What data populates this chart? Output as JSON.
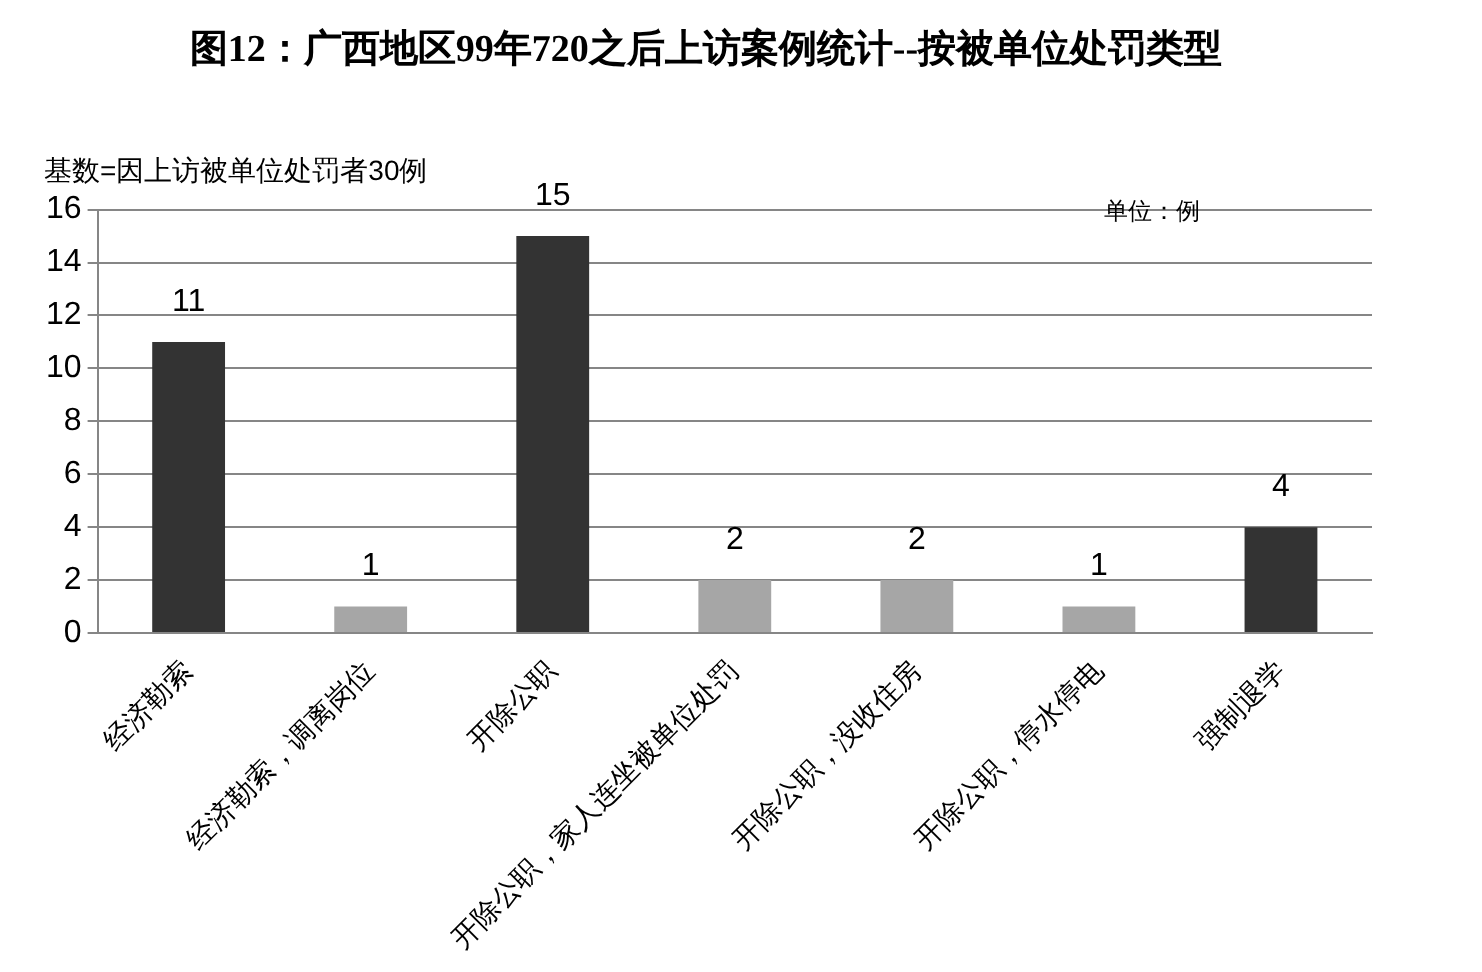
{
  "chart_data": {
    "type": "bar",
    "title": "图12：广西地区99年720之后上访案例统计--按被单位处罚类型",
    "categories": [
      "经济勒索",
      "经济勒索，调离岗位",
      "开除公职",
      "开除公职，家人连坐被单位处罚",
      "开除公职，没收住房",
      "开除公职，停水停电",
      "强制退学"
    ],
    "values": [
      11,
      1,
      15,
      2,
      2,
      1,
      4
    ],
    "colors": [
      "#333333",
      "#a6a6a6",
      "#333333",
      "#a6a6a6",
      "#a6a6a6",
      "#a6a6a6",
      "#333333"
    ],
    "ylim": [
      0,
      16
    ],
    "yticks": [
      0,
      2,
      4,
      6,
      8,
      10,
      12,
      14,
      16
    ],
    "grid": "y",
    "legend": false,
    "data_labels": true,
    "annotations": [
      "基数=因上访被单位处罚者30例",
      "单位：例"
    ]
  }
}
